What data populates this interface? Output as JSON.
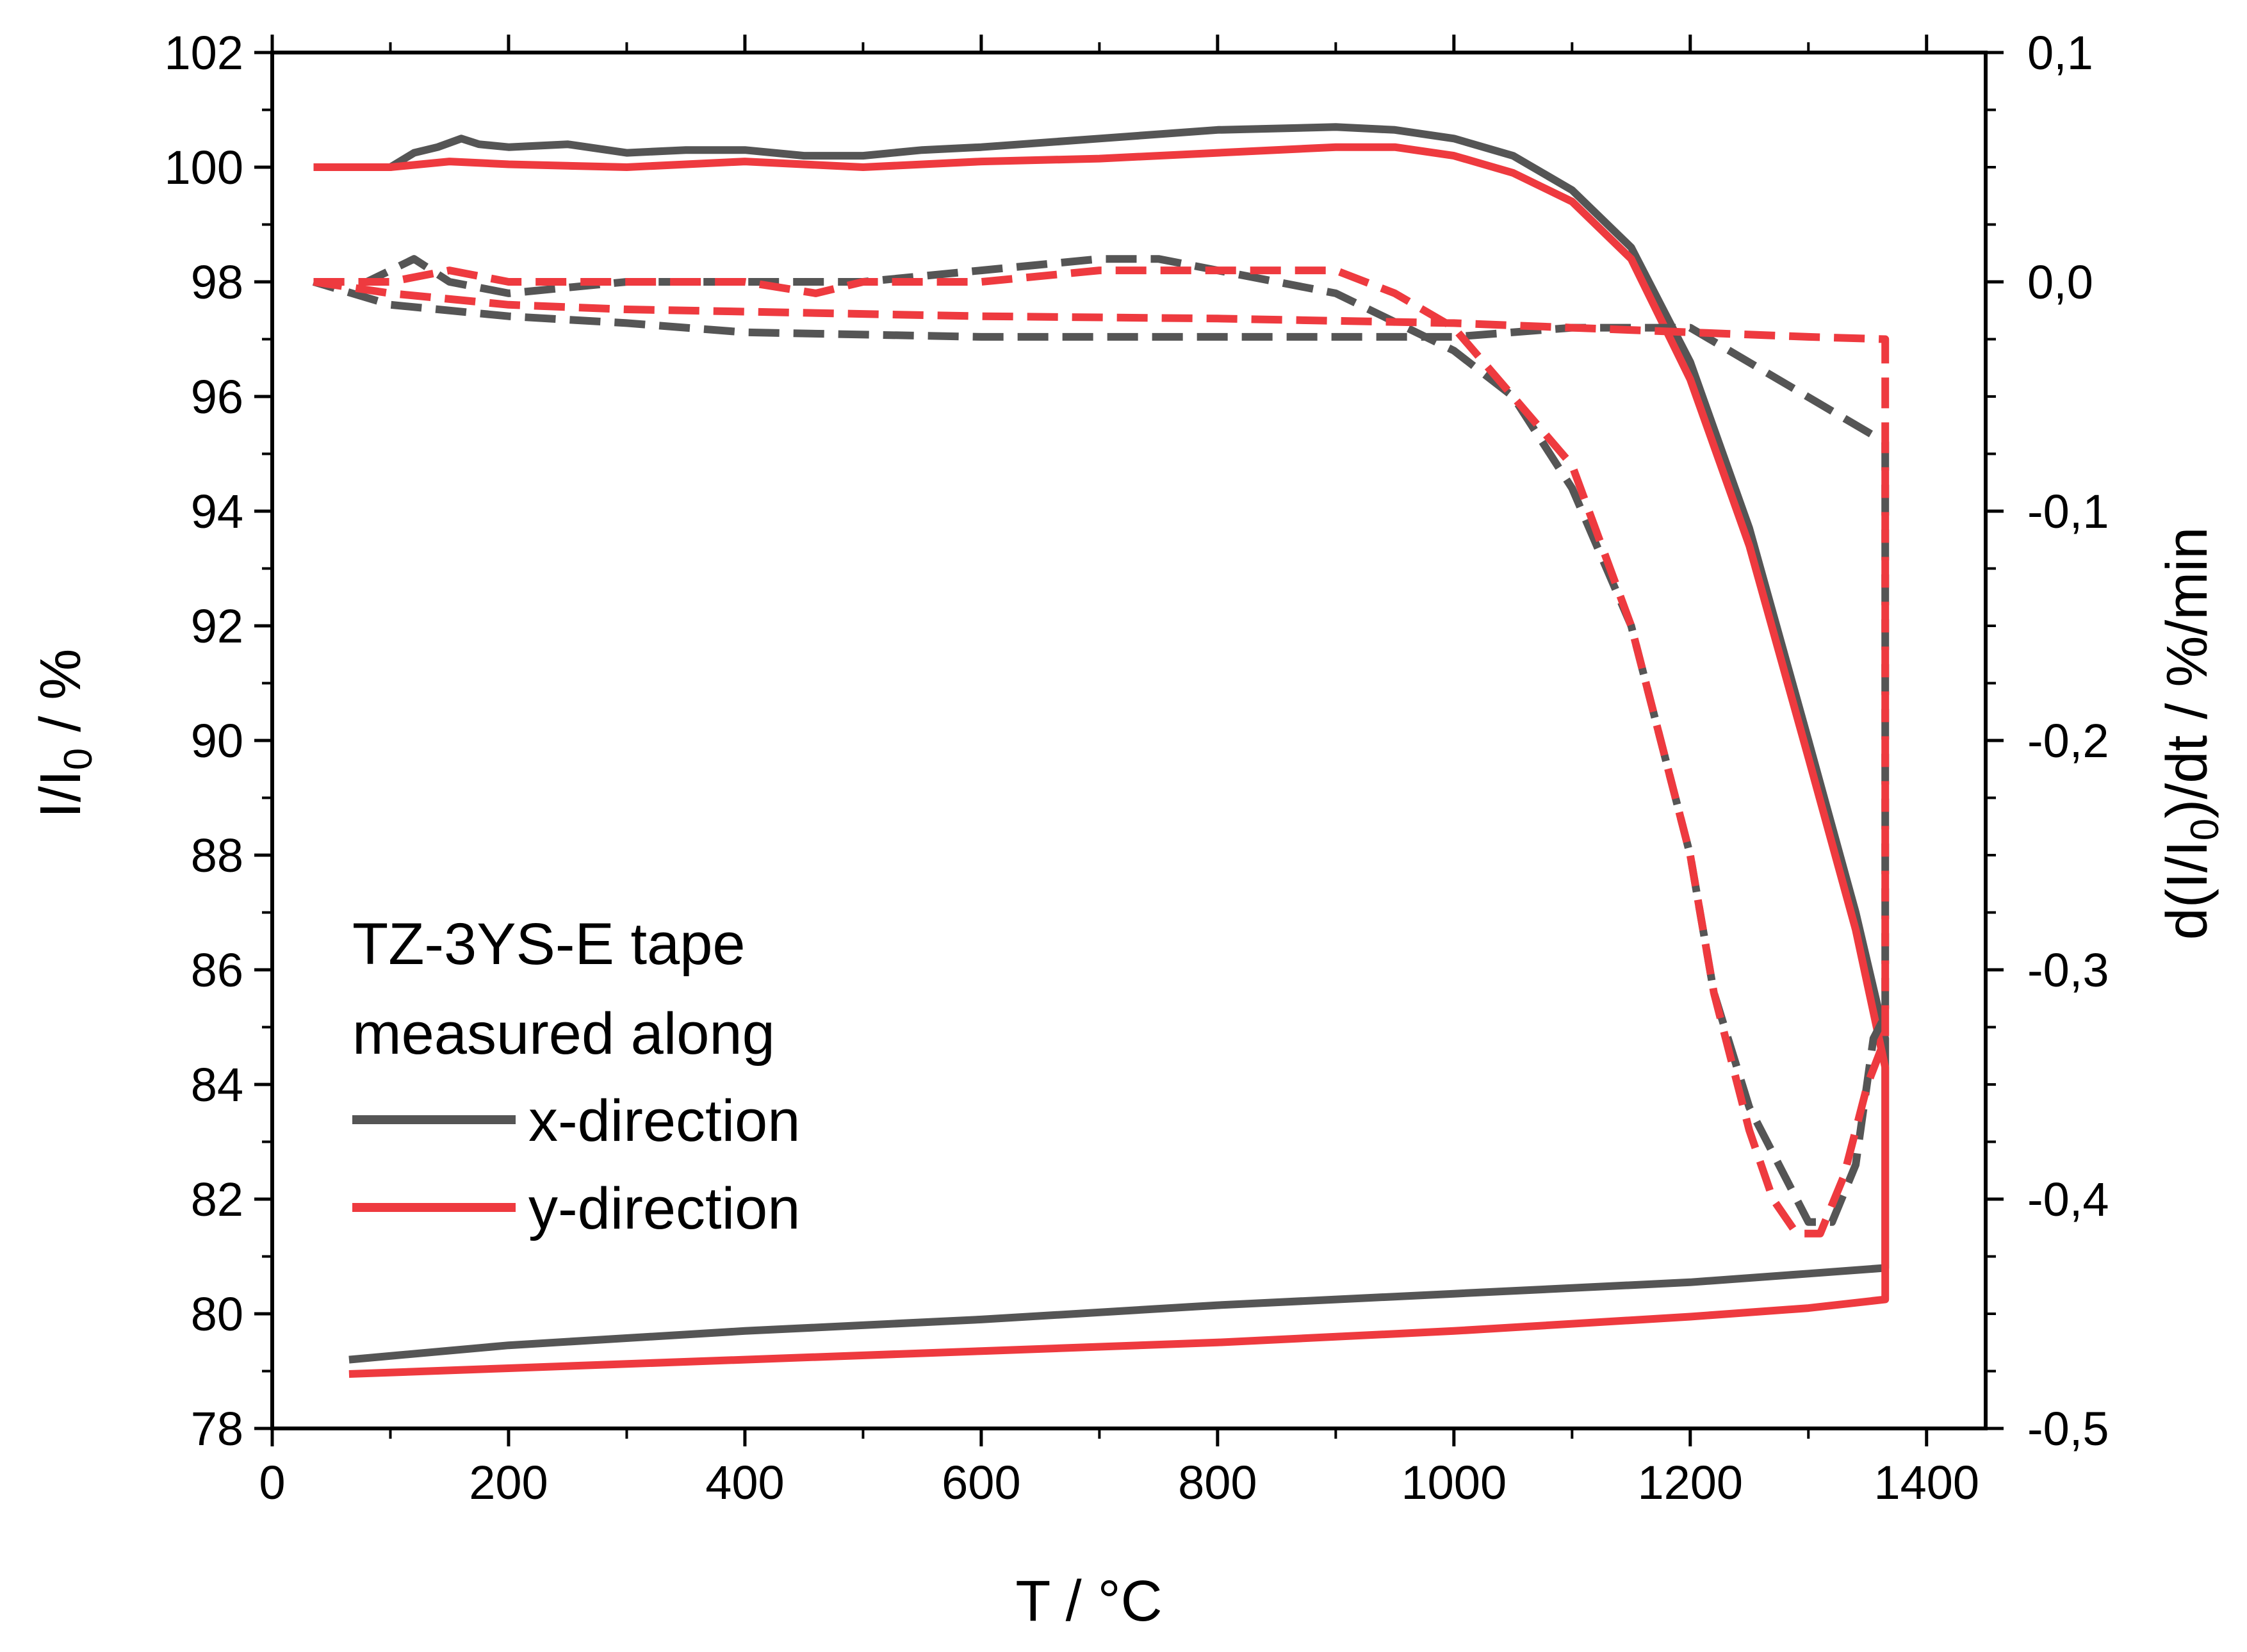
{
  "chart_data": {
    "type": "line",
    "xlabel": "T / °C",
    "ylabel": {
      "main": "I/I",
      "sub": "0",
      "tail": " / %"
    },
    "y2label": {
      "main": "d(I/I",
      "sub": "0",
      "tail": ")/dt / %/min"
    },
    "xlim": [
      0,
      1450
    ],
    "ylim": [
      78,
      102
    ],
    "y2lim": [
      -0.5,
      0.1
    ],
    "x_ticks": [
      0,
      200,
      400,
      600,
      800,
      1000,
      1200,
      1400
    ],
    "y_ticks": [
      78,
      80,
      82,
      84,
      86,
      88,
      90,
      92,
      94,
      96,
      98,
      100,
      102
    ],
    "y2_ticks": [
      -0.5,
      -0.4,
      -0.3,
      -0.2,
      -0.1,
      0.0,
      0.1
    ],
    "x_tick_labels": [
      "0",
      "200",
      "400",
      "600",
      "800",
      "1000",
      "1200",
      "1400"
    ],
    "y_tick_labels": [
      "78",
      "80",
      "82",
      "84",
      "86",
      "88",
      "90",
      "92",
      "94",
      "96",
      "98",
      "100",
      "102"
    ],
    "y2_tick_labels": [
      "-0,5",
      "-0,4",
      "-0,3",
      "-0,2",
      "-0,1",
      "0,0",
      "0,1"
    ],
    "legend": {
      "title_line1": "TZ-3YS-E tape",
      "title_line2": "measured along",
      "position": "lower-left",
      "entries": [
        {
          "label": "x-direction",
          "color": "#555555"
        },
        {
          "label": "y-direction",
          "color": "#ee3a3f"
        }
      ]
    },
    "series": [
      {
        "name": "x-direction I/I0",
        "axis": "left",
        "style": "solid",
        "color": "#555555",
        "x": [
          35,
          100,
          120,
          140,
          160,
          175,
          200,
          250,
          300,
          350,
          400,
          450,
          500,
          550,
          600,
          700,
          800,
          900,
          950,
          1000,
          1050,
          1100,
          1150,
          1200,
          1250,
          1300,
          1340,
          1365,
          1365,
          1300,
          1200,
          1000,
          800,
          600,
          400,
          200,
          65
        ],
        "y": [
          100.0,
          100.0,
          100.25,
          100.35,
          100.5,
          100.4,
          100.35,
          100.4,
          100.25,
          100.3,
          100.3,
          100.2,
          100.2,
          100.3,
          100.35,
          100.5,
          100.65,
          100.7,
          100.65,
          100.5,
          100.2,
          99.6,
          98.6,
          96.6,
          93.7,
          90.0,
          87.0,
          84.8,
          80.8,
          80.7,
          80.55,
          80.35,
          80.15,
          79.9,
          79.7,
          79.45,
          79.2
        ]
      },
      {
        "name": "y-direction I/I0",
        "axis": "left",
        "style": "solid",
        "color": "#ee3a3f",
        "x": [
          35,
          100,
          150,
          200,
          300,
          400,
          500,
          600,
          700,
          800,
          900,
          950,
          1000,
          1050,
          1100,
          1150,
          1200,
          1250,
          1300,
          1340,
          1365,
          1365,
          1300,
          1200,
          1000,
          800,
          600,
          400,
          200,
          65
        ],
        "y": [
          100.0,
          100.0,
          100.1,
          100.05,
          100.0,
          100.1,
          100.0,
          100.1,
          100.15,
          100.25,
          100.35,
          100.35,
          100.2,
          99.9,
          99.4,
          98.4,
          96.3,
          93.4,
          89.7,
          86.7,
          84.3,
          80.25,
          80.1,
          79.95,
          79.7,
          79.5,
          79.35,
          79.2,
          79.05,
          78.95
        ]
      },
      {
        "name": "x-direction d(I/I0)/dt",
        "axis": "right",
        "style": "dashed",
        "color": "#555555",
        "x": [
          35,
          60,
          80,
          100,
          120,
          150,
          200,
          300,
          400,
          500,
          600,
          700,
          750,
          800,
          900,
          1000,
          1050,
          1100,
          1150,
          1200,
          1220,
          1250,
          1280,
          1300,
          1320,
          1340,
          1355,
          1365,
          1365,
          1200,
          1100,
          1000,
          800,
          600,
          400,
          300,
          200,
          100,
          35
        ],
        "y": [
          0.0,
          0.0,
          0.0,
          0.005,
          0.01,
          0.0,
          -0.005,
          0.0,
          0.0,
          0.0,
          0.005,
          0.01,
          0.01,
          0.005,
          -0.005,
          -0.03,
          -0.05,
          -0.09,
          -0.15,
          -0.25,
          -0.31,
          -0.36,
          -0.39,
          -0.41,
          -0.41,
          -0.385,
          -0.33,
          -0.32,
          -0.07,
          -0.02,
          -0.02,
          -0.024,
          -0.024,
          -0.024,
          -0.022,
          -0.018,
          -0.015,
          -0.01,
          0.0
        ]
      },
      {
        "name": "y-direction d(I/I0)/dt",
        "axis": "right",
        "style": "dashed",
        "color": "#ee3a3f",
        "x": [
          35,
          100,
          150,
          200,
          300,
          400,
          460,
          500,
          600,
          700,
          800,
          900,
          950,
          1000,
          1050,
          1100,
          1150,
          1200,
          1220,
          1250,
          1270,
          1290,
          1310,
          1330,
          1350,
          1365,
          1365,
          1300,
          1200,
          1100,
          1000,
          800,
          600,
          400,
          300,
          200,
          100,
          35
        ],
        "y": [
          0.0,
          0.0,
          0.005,
          0.0,
          0.0,
          0.0,
          -0.005,
          0.0,
          0.0,
          0.005,
          0.005,
          0.005,
          -0.005,
          -0.02,
          -0.05,
          -0.08,
          -0.15,
          -0.25,
          -0.31,
          -0.37,
          -0.4,
          -0.415,
          -0.415,
          -0.39,
          -0.35,
          -0.33,
          -0.025,
          -0.024,
          -0.022,
          -0.02,
          -0.018,
          -0.016,
          -0.015,
          -0.013,
          -0.012,
          -0.01,
          -0.005,
          0.0
        ]
      }
    ]
  }
}
